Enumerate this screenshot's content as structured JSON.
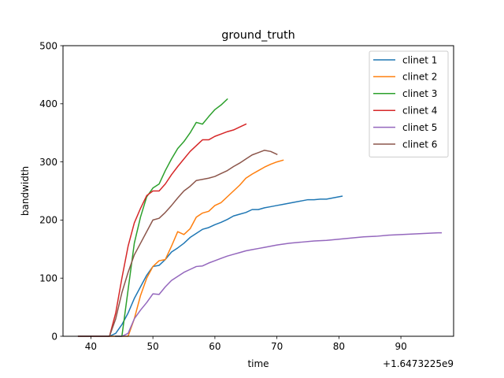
{
  "chart_data": {
    "type": "line",
    "title": "ground_truth",
    "xlabel": "time",
    "ylabel": "bandwidth",
    "x_offset_label": "+1.6473225e9",
    "xlim": [
      35.5,
      98.5
    ],
    "ylim": [
      0,
      500
    ],
    "x_ticks": [
      40,
      50,
      60,
      70,
      80,
      90
    ],
    "y_ticks": [
      0,
      100,
      200,
      300,
      400,
      500
    ],
    "grid": false,
    "legend_position": "top-right",
    "series": [
      {
        "name": "clinet 1",
        "color": "#1f77b4",
        "points": [
          [
            38,
            0
          ],
          [
            40,
            0
          ],
          [
            42,
            0
          ],
          [
            43,
            0
          ],
          [
            44,
            5
          ],
          [
            45,
            20
          ],
          [
            46,
            40
          ],
          [
            47,
            65
          ],
          [
            48,
            85
          ],
          [
            49,
            105
          ],
          [
            50,
            120
          ],
          [
            51,
            122
          ],
          [
            52,
            132
          ],
          [
            53,
            145
          ],
          [
            54,
            152
          ],
          [
            55,
            160
          ],
          [
            56,
            170
          ],
          [
            57,
            177
          ],
          [
            58,
            184
          ],
          [
            59,
            187
          ],
          [
            60,
            192
          ],
          [
            61,
            196
          ],
          [
            62,
            201
          ],
          [
            63,
            207
          ],
          [
            64,
            210
          ],
          [
            65,
            213
          ],
          [
            66,
            218
          ],
          [
            67,
            218
          ],
          [
            68,
            221
          ],
          [
            69,
            223
          ],
          [
            70,
            225
          ],
          [
            71,
            227
          ],
          [
            72,
            229
          ],
          [
            73,
            231
          ],
          [
            74,
            233
          ],
          [
            75,
            235
          ],
          [
            76,
            235
          ],
          [
            77,
            236
          ],
          [
            78,
            236
          ],
          [
            79,
            238
          ],
          [
            80,
            240
          ],
          [
            80.5,
            241
          ]
        ]
      },
      {
        "name": "clinet 2",
        "color": "#ff7f0e",
        "points": [
          [
            43,
            0
          ],
          [
            44,
            0
          ],
          [
            45,
            0
          ],
          [
            46,
            0
          ],
          [
            47,
            30
          ],
          [
            48,
            70
          ],
          [
            49,
            100
          ],
          [
            50,
            120
          ],
          [
            51,
            130
          ],
          [
            52,
            132
          ],
          [
            53,
            155
          ],
          [
            54,
            180
          ],
          [
            55,
            175
          ],
          [
            56,
            185
          ],
          [
            57,
            205
          ],
          [
            58,
            212
          ],
          [
            59,
            215
          ],
          [
            60,
            225
          ],
          [
            61,
            230
          ],
          [
            62,
            240
          ],
          [
            63,
            250
          ],
          [
            64,
            260
          ],
          [
            65,
            272
          ],
          [
            66,
            279
          ],
          [
            67,
            285
          ],
          [
            68,
            291
          ],
          [
            69,
            296
          ],
          [
            70,
            300
          ],
          [
            71,
            303
          ]
        ]
      },
      {
        "name": "clinet 3",
        "color": "#2ca02c",
        "points": [
          [
            44,
            0
          ],
          [
            45,
            0
          ],
          [
            46,
            80
          ],
          [
            47,
            160
          ],
          [
            48,
            205
          ],
          [
            49,
            240
          ],
          [
            50,
            255
          ],
          [
            51,
            262
          ],
          [
            52,
            285
          ],
          [
            53,
            305
          ],
          [
            54,
            323
          ],
          [
            55,
            335
          ],
          [
            56,
            350
          ],
          [
            57,
            368
          ],
          [
            58,
            365
          ],
          [
            59,
            378
          ],
          [
            60,
            390
          ],
          [
            61,
            398
          ],
          [
            62,
            408
          ]
        ]
      },
      {
        "name": "clinet 4",
        "color": "#d62728",
        "points": [
          [
            38,
            0
          ],
          [
            40,
            0
          ],
          [
            42,
            0
          ],
          [
            43,
            0
          ],
          [
            44,
            40
          ],
          [
            45,
            100
          ],
          [
            46,
            155
          ],
          [
            47,
            195
          ],
          [
            48,
            220
          ],
          [
            49,
            242
          ],
          [
            50,
            250
          ],
          [
            51,
            250
          ],
          [
            52,
            262
          ],
          [
            53,
            278
          ],
          [
            54,
            292
          ],
          [
            55,
            305
          ],
          [
            56,
            318
          ],
          [
            57,
            328
          ],
          [
            58,
            338
          ],
          [
            59,
            338
          ],
          [
            60,
            344
          ],
          [
            61,
            348
          ],
          [
            62,
            352
          ],
          [
            63,
            355
          ],
          [
            64,
            360
          ],
          [
            65,
            365
          ]
        ]
      },
      {
        "name": "clinet 5",
        "color": "#9467bd",
        "points": [
          [
            44,
            0
          ],
          [
            45,
            0
          ],
          [
            46,
            5
          ],
          [
            47,
            30
          ],
          [
            48,
            45
          ],
          [
            49,
            58
          ],
          [
            50,
            73
          ],
          [
            51,
            72
          ],
          [
            52,
            85
          ],
          [
            53,
            96
          ],
          [
            54,
            103
          ],
          [
            55,
            110
          ],
          [
            56,
            115
          ],
          [
            57,
            120
          ],
          [
            58,
            121
          ],
          [
            59,
            126
          ],
          [
            60,
            130
          ],
          [
            61,
            134
          ],
          [
            62,
            138
          ],
          [
            63,
            141
          ],
          [
            64,
            144
          ],
          [
            65,
            147
          ],
          [
            66,
            149
          ],
          [
            67,
            151
          ],
          [
            68,
            153
          ],
          [
            69,
            155
          ],
          [
            70,
            157
          ],
          [
            72,
            160
          ],
          [
            74,
            162
          ],
          [
            76,
            164
          ],
          [
            78,
            165
          ],
          [
            80,
            167
          ],
          [
            82,
            169
          ],
          [
            84,
            171
          ],
          [
            86,
            172
          ],
          [
            88,
            174
          ],
          [
            90,
            175
          ],
          [
            92,
            176
          ],
          [
            94,
            177
          ],
          [
            96,
            178
          ],
          [
            96.5,
            178
          ]
        ]
      },
      {
        "name": "clinet 6",
        "color": "#8c564b",
        "points": [
          [
            38,
            0
          ],
          [
            40,
            0
          ],
          [
            42,
            0
          ],
          [
            43,
            0
          ],
          [
            44,
            30
          ],
          [
            45,
            75
          ],
          [
            46,
            110
          ],
          [
            47,
            140
          ],
          [
            48,
            160
          ],
          [
            49,
            180
          ],
          [
            50,
            200
          ],
          [
            51,
            203
          ],
          [
            52,
            213
          ],
          [
            53,
            225
          ],
          [
            54,
            238
          ],
          [
            55,
            250
          ],
          [
            56,
            258
          ],
          [
            57,
            268
          ],
          [
            58,
            270
          ],
          [
            59,
            272
          ],
          [
            60,
            275
          ],
          [
            61,
            280
          ],
          [
            62,
            285
          ],
          [
            63,
            292
          ],
          [
            64,
            298
          ],
          [
            65,
            305
          ],
          [
            66,
            312
          ],
          [
            67,
            316
          ],
          [
            68,
            320
          ],
          [
            69,
            318
          ],
          [
            70,
            313
          ]
        ]
      }
    ]
  }
}
